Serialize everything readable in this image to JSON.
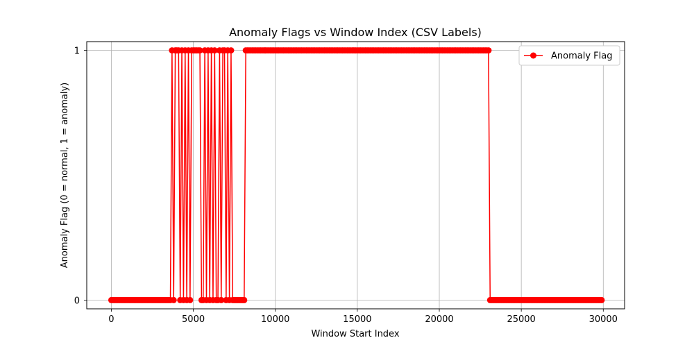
{
  "chart_data": {
    "type": "line",
    "title": "Anomaly Flags vs Window Index (CSV Labels)",
    "xlabel": "Window Start Index",
    "ylabel": "Anomaly Flag (0 = normal, 1 = anomaly)",
    "xlim": [
      -1500,
      31300
    ],
    "ylim": [
      -0.035,
      1.035
    ],
    "xticks": [
      0,
      5000,
      10000,
      15000,
      20000,
      25000,
      30000
    ],
    "yticks": [
      0,
      1
    ],
    "grid": true,
    "legend_position": "top-right",
    "window_step": 100,
    "x_start": 0,
    "x_end": 29900,
    "series": [
      {
        "name": "Anomaly Flag",
        "color": "#ff0000",
        "marker": "circle",
        "segments": [
          {
            "from": 0,
            "to": 3600,
            "value": 0
          },
          {
            "from": 3700,
            "to": 3700,
            "value": 1
          },
          {
            "from": 3800,
            "to": 3800,
            "value": 0
          },
          {
            "from": 3900,
            "to": 4100,
            "value": 1
          },
          {
            "from": 4200,
            "to": 4200,
            "value": 0
          },
          {
            "from": 4300,
            "to": 4300,
            "value": 1
          },
          {
            "from": 4400,
            "to": 4400,
            "value": 0
          },
          {
            "from": 4500,
            "to": 4500,
            "value": 1
          },
          {
            "from": 4600,
            "to": 4600,
            "value": 0
          },
          {
            "from": 4700,
            "to": 4700,
            "value": 1
          },
          {
            "from": 4800,
            "to": 4800,
            "value": 0
          },
          {
            "from": 4900,
            "to": 5400,
            "value": 1
          },
          {
            "from": 5500,
            "to": 5600,
            "value": 0
          },
          {
            "from": 5700,
            "to": 5700,
            "value": 1
          },
          {
            "from": 5800,
            "to": 5800,
            "value": 0
          },
          {
            "from": 5900,
            "to": 5900,
            "value": 1
          },
          {
            "from": 6000,
            "to": 6000,
            "value": 0
          },
          {
            "from": 6100,
            "to": 6100,
            "value": 1
          },
          {
            "from": 6200,
            "to": 6200,
            "value": 0
          },
          {
            "from": 6300,
            "to": 6300,
            "value": 1
          },
          {
            "from": 6400,
            "to": 6500,
            "value": 0
          },
          {
            "from": 6600,
            "to": 6600,
            "value": 1
          },
          {
            "from": 6700,
            "to": 6700,
            "value": 0
          },
          {
            "from": 6800,
            "to": 6900,
            "value": 1
          },
          {
            "from": 7000,
            "to": 7000,
            "value": 0
          },
          {
            "from": 7100,
            "to": 7100,
            "value": 1
          },
          {
            "from": 7200,
            "to": 7200,
            "value": 0
          },
          {
            "from": 7300,
            "to": 7300,
            "value": 1
          },
          {
            "from": 7400,
            "to": 8100,
            "value": 0
          },
          {
            "from": 8200,
            "to": 23000,
            "value": 1
          },
          {
            "from": 23100,
            "to": 29900,
            "value": 0
          }
        ]
      }
    ]
  }
}
